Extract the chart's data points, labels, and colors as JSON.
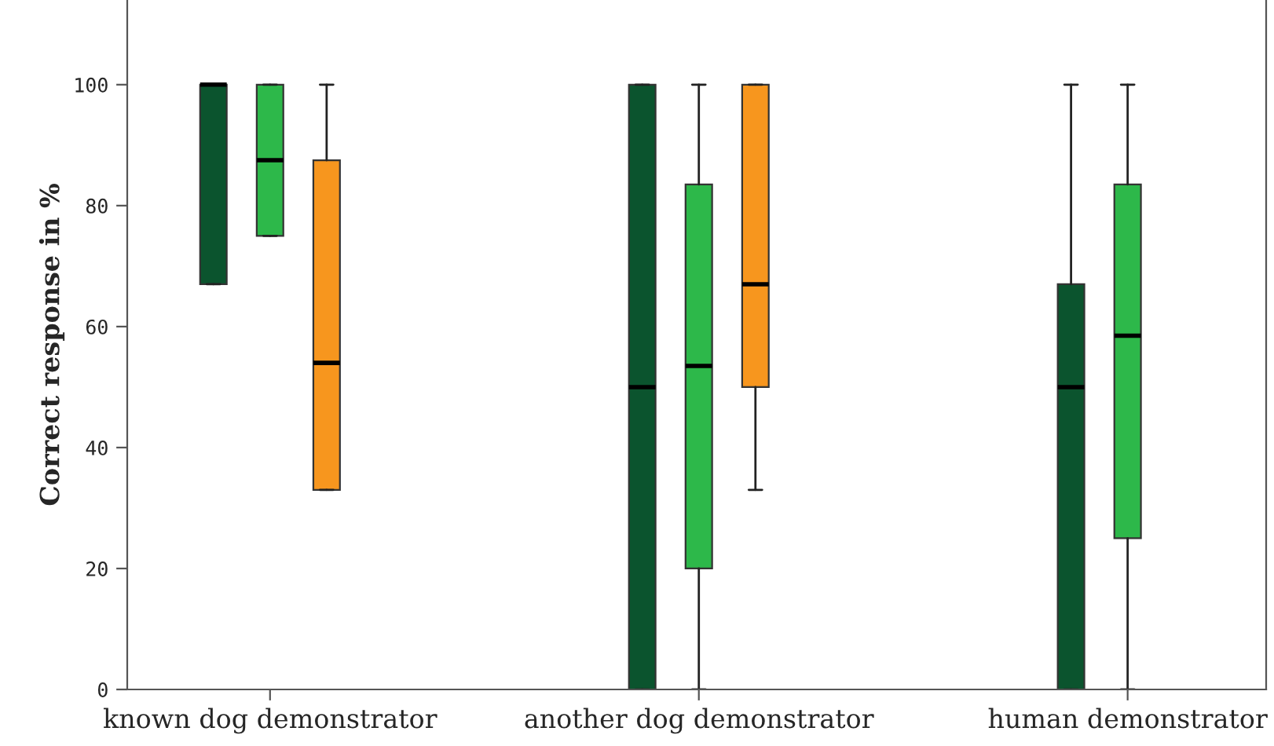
{
  "chart_data": {
    "type": "box",
    "ylabel": "Correct response in %",
    "categories": [
      "known dog demonstrator",
      "another dog demonstrator",
      "human demonstrator"
    ],
    "ylim": [
      0,
      114
    ],
    "yticks": [
      0,
      20,
      40,
      60,
      80,
      100
    ],
    "grid": false,
    "series": [
      {
        "color": "#0b542e",
        "boxes": [
          {
            "low": 67,
            "q1": 67,
            "median": 100,
            "q3": 100,
            "high": 100
          },
          {
            "low": 0,
            "q1": 0,
            "median": 50,
            "q3": 100,
            "high": 100
          },
          {
            "low": 0,
            "q1": 0,
            "median": 50,
            "q3": 67,
            "high": 100
          }
        ]
      },
      {
        "color": "#2db84a",
        "boxes": [
          {
            "low": 75,
            "q1": 75,
            "median": 87.5,
            "q3": 100,
            "high": 100
          },
          {
            "low": 0,
            "q1": 20,
            "median": 53.5,
            "q3": 83.5,
            "high": 100
          },
          {
            "low": 0,
            "q1": 25,
            "median": 58.5,
            "q3": 83.5,
            "high": 100
          }
        ]
      },
      {
        "color": "#f7961e",
        "boxes": [
          {
            "low": 33,
            "q1": 33,
            "median": 54,
            "q3": 87.5,
            "high": 100
          },
          {
            "low": 33,
            "q1": 50,
            "median": 67,
            "q3": 100,
            "high": 100
          },
          null
        ]
      }
    ]
  }
}
